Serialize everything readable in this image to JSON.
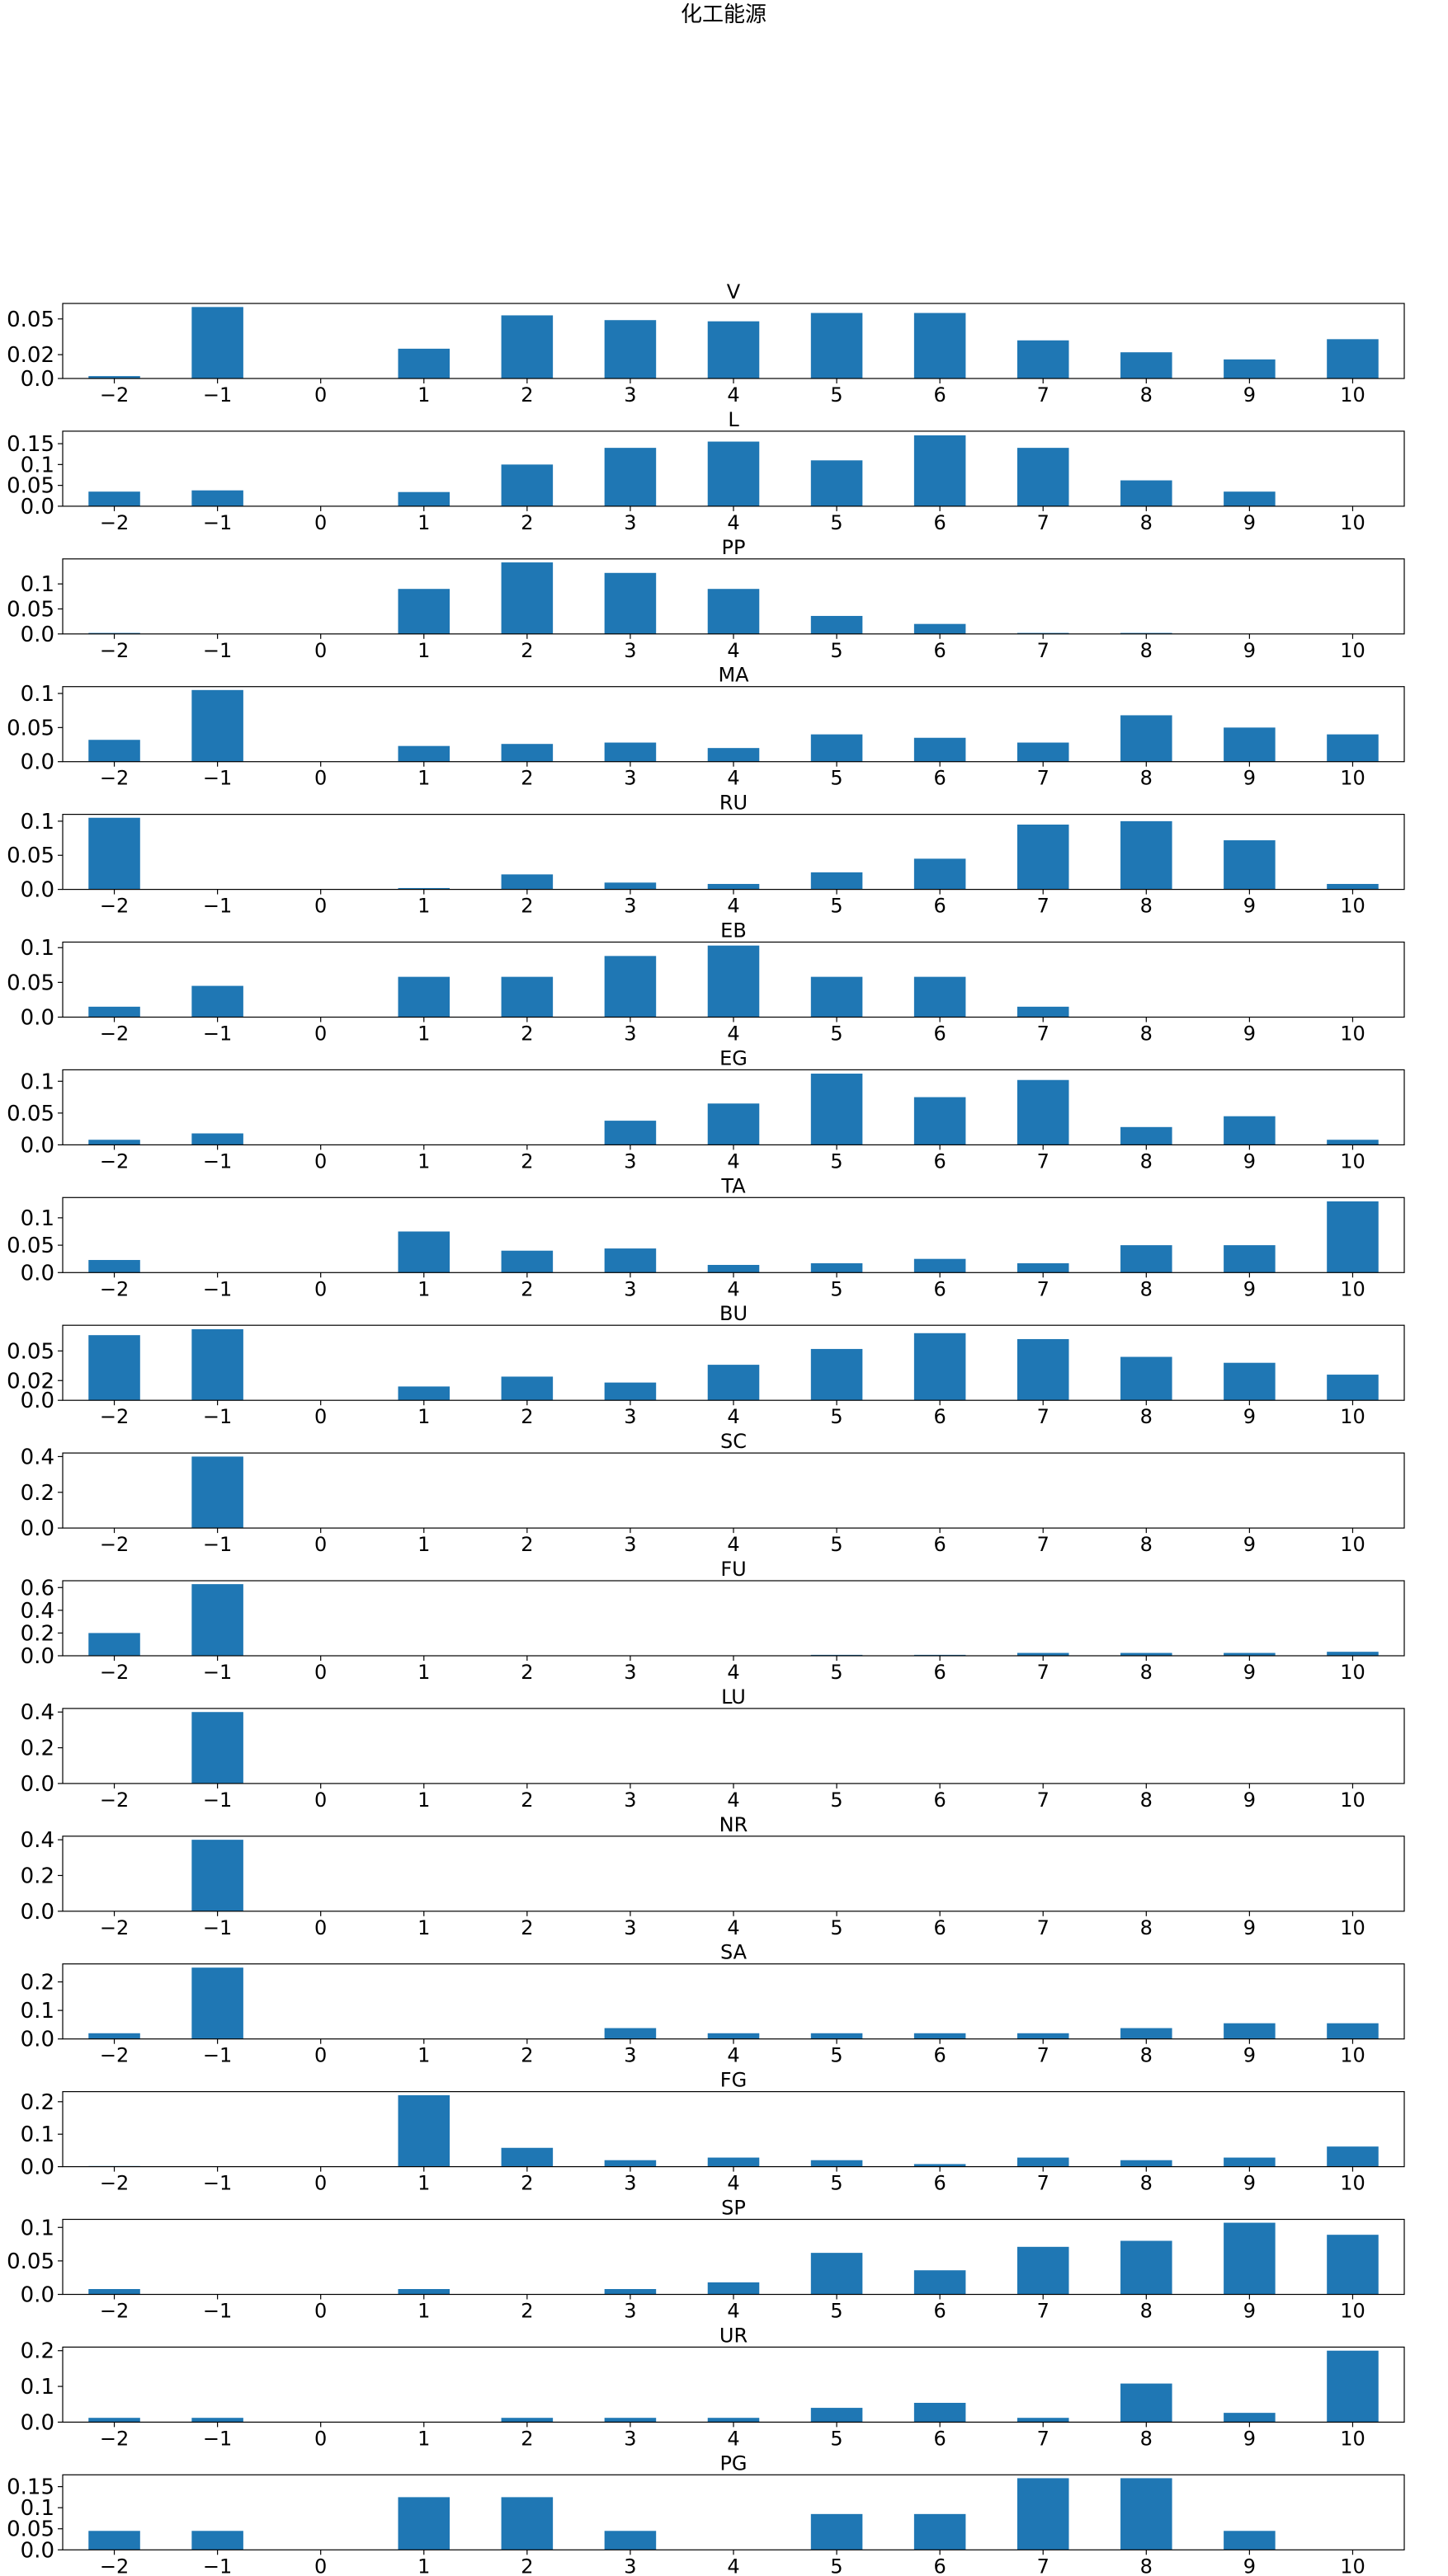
{
  "figure": {
    "suptitle": "化工能源"
  },
  "chart_data": [
    {
      "type": "bar",
      "title": "V",
      "categories": [
        -2,
        -1,
        0,
        1,
        2,
        3,
        4,
        5,
        6,
        7,
        8,
        9,
        10
      ],
      "values": [
        0.002,
        0.06,
        0,
        0.025,
        0.053,
        0.049,
        0.048,
        0.055,
        0.055,
        0.032,
        0.022,
        0.016,
        0.033
      ],
      "ylim": [
        0,
        0.063
      ],
      "yticks": [
        0.0,
        0.02,
        0.05
      ],
      "ytick_labels": [
        "0.0",
        "0.02",
        "0.05"
      ]
    },
    {
      "type": "bar",
      "title": "L",
      "categories": [
        -2,
        -1,
        0,
        1,
        2,
        3,
        4,
        5,
        6,
        7,
        8,
        9,
        10
      ],
      "values": [
        0.035,
        0.038,
        0,
        0.034,
        0.1,
        0.14,
        0.155,
        0.11,
        0.17,
        0.14,
        0.062,
        0.035,
        0
      ],
      "ylim": [
        0,
        0.18
      ],
      "yticks": [
        0.0,
        0.05,
        0.1,
        0.15
      ],
      "ytick_labels": [
        "0.0",
        "0.05",
        "0.1",
        "0.15"
      ]
    },
    {
      "type": "bar",
      "title": "PP",
      "categories": [
        -2,
        -1,
        0,
        1,
        2,
        3,
        4,
        5,
        6,
        7,
        8,
        9,
        10
      ],
      "values": [
        0.002,
        0,
        0,
        0.09,
        0.143,
        0.122,
        0.09,
        0.036,
        0.02,
        0.002,
        0.002,
        0,
        0
      ],
      "ylim": [
        0,
        0.15
      ],
      "yticks": [
        0.0,
        0.05,
        0.1
      ],
      "ytick_labels": [
        "0.0",
        "0.05",
        "0.1"
      ]
    },
    {
      "type": "bar",
      "title": "MA",
      "categories": [
        -2,
        -1,
        0,
        1,
        2,
        3,
        4,
        5,
        6,
        7,
        8,
        9,
        10
      ],
      "values": [
        0.032,
        0.105,
        0,
        0.023,
        0.026,
        0.028,
        0.02,
        0.04,
        0.035,
        0.028,
        0.068,
        0.05,
        0.04
      ],
      "ylim": [
        0,
        0.11
      ],
      "yticks": [
        0.0,
        0.05,
        0.1
      ],
      "ytick_labels": [
        "0.0",
        "0.05",
        "0.1"
      ]
    },
    {
      "type": "bar",
      "title": "RU",
      "categories": [
        -2,
        -1,
        0,
        1,
        2,
        3,
        4,
        5,
        6,
        7,
        8,
        9,
        10
      ],
      "values": [
        0.105,
        0,
        0,
        0.002,
        0.022,
        0.01,
        0.008,
        0.025,
        0.045,
        0.095,
        0.1,
        0.072,
        0.008
      ],
      "ylim": [
        0,
        0.11
      ],
      "yticks": [
        0.0,
        0.05,
        0.1
      ],
      "ytick_labels": [
        "0.0",
        "0.05",
        "0.1"
      ]
    },
    {
      "type": "bar",
      "title": "EB",
      "categories": [
        -2,
        -1,
        0,
        1,
        2,
        3,
        4,
        5,
        6,
        7,
        8,
        9,
        10
      ],
      "values": [
        0.015,
        0.045,
        0,
        0.058,
        0.058,
        0.088,
        0.103,
        0.058,
        0.058,
        0.015,
        0,
        0,
        0
      ],
      "ylim": [
        0,
        0.108
      ],
      "yticks": [
        0.0,
        0.05,
        0.1
      ],
      "ytick_labels": [
        "0.0",
        "0.05",
        "0.1"
      ]
    },
    {
      "type": "bar",
      "title": "EG",
      "categories": [
        -2,
        -1,
        0,
        1,
        2,
        3,
        4,
        5,
        6,
        7,
        8,
        9,
        10
      ],
      "values": [
        0.008,
        0.018,
        0,
        0,
        0,
        0.038,
        0.065,
        0.112,
        0.075,
        0.102,
        0.028,
        0.045,
        0.008
      ],
      "ylim": [
        0,
        0.118
      ],
      "yticks": [
        0.0,
        0.05,
        0.1
      ],
      "ytick_labels": [
        "0.0",
        "0.05",
        "0.1"
      ]
    },
    {
      "type": "bar",
      "title": "TA",
      "categories": [
        -2,
        -1,
        0,
        1,
        2,
        3,
        4,
        5,
        6,
        7,
        8,
        9,
        10
      ],
      "values": [
        0.023,
        0,
        0,
        0.075,
        0.04,
        0.044,
        0.014,
        0.017,
        0.025,
        0.017,
        0.05,
        0.05,
        0.13
      ],
      "ylim": [
        0,
        0.137
      ],
      "yticks": [
        0.0,
        0.05,
        0.1
      ],
      "ytick_labels": [
        "0.0",
        "0.05",
        "0.1"
      ]
    },
    {
      "type": "bar",
      "title": "BU",
      "categories": [
        -2,
        -1,
        0,
        1,
        2,
        3,
        4,
        5,
        6,
        7,
        8,
        9,
        10
      ],
      "values": [
        0.066,
        0.072,
        0,
        0.014,
        0.024,
        0.018,
        0.036,
        0.052,
        0.068,
        0.062,
        0.044,
        0.038,
        0.026
      ],
      "ylim": [
        0,
        0.076
      ],
      "yticks": [
        0.0,
        0.02,
        0.05
      ],
      "ytick_labels": [
        "0.0",
        "0.02",
        "0.05"
      ]
    },
    {
      "type": "bar",
      "title": "SC",
      "categories": [
        -2,
        -1,
        0,
        1,
        2,
        3,
        4,
        5,
        6,
        7,
        8,
        9,
        10
      ],
      "values": [
        0,
        0.4,
        0,
        0,
        0,
        0,
        0,
        0,
        0,
        0,
        0,
        0,
        0
      ],
      "ylim": [
        0,
        0.42
      ],
      "yticks": [
        0.0,
        0.2,
        0.4
      ],
      "ytick_labels": [
        "0.0",
        "0.2",
        "0.4"
      ]
    },
    {
      "type": "bar",
      "title": "FU",
      "categories": [
        -2,
        -1,
        0,
        1,
        2,
        3,
        4,
        5,
        6,
        7,
        8,
        9,
        10
      ],
      "values": [
        0.2,
        0.63,
        0,
        0,
        0,
        0,
        0,
        0.008,
        0.008,
        0.025,
        0.025,
        0.025,
        0.035
      ],
      "ylim": [
        0,
        0.66
      ],
      "yticks": [
        0.0,
        0.2,
        0.4,
        0.6
      ],
      "ytick_labels": [
        "0.0",
        "0.2",
        "0.4",
        "0.6"
      ]
    },
    {
      "type": "bar",
      "title": "LU",
      "categories": [
        -2,
        -1,
        0,
        1,
        2,
        3,
        4,
        5,
        6,
        7,
        8,
        9,
        10
      ],
      "values": [
        0,
        0.4,
        0,
        0,
        0,
        0,
        0,
        0,
        0,
        0,
        0,
        0,
        0
      ],
      "ylim": [
        0,
        0.42
      ],
      "yticks": [
        0.0,
        0.2,
        0.4
      ],
      "ytick_labels": [
        "0.0",
        "0.2",
        "0.4"
      ]
    },
    {
      "type": "bar",
      "title": "NR",
      "categories": [
        -2,
        -1,
        0,
        1,
        2,
        3,
        4,
        5,
        6,
        7,
        8,
        9,
        10
      ],
      "values": [
        0,
        0.4,
        0,
        0,
        0,
        0,
        0,
        0,
        0,
        0,
        0,
        0,
        0
      ],
      "ylim": [
        0,
        0.42
      ],
      "yticks": [
        0.0,
        0.2,
        0.4
      ],
      "ytick_labels": [
        "0.0",
        "0.2",
        "0.4"
      ]
    },
    {
      "type": "bar",
      "title": "SA",
      "categories": [
        -2,
        -1,
        0,
        1,
        2,
        3,
        4,
        5,
        6,
        7,
        8,
        9,
        10
      ],
      "values": [
        0.02,
        0.25,
        0,
        0,
        0,
        0.038,
        0.02,
        0.02,
        0.02,
        0.02,
        0.038,
        0.055,
        0.055
      ],
      "ylim": [
        0,
        0.263
      ],
      "yticks": [
        0.0,
        0.1,
        0.2
      ],
      "ytick_labels": [
        "0.0",
        "0.1",
        "0.2"
      ]
    },
    {
      "type": "bar",
      "title": "FG",
      "categories": [
        -2,
        -1,
        0,
        1,
        2,
        3,
        4,
        5,
        6,
        7,
        8,
        9,
        10
      ],
      "values": [
        0.002,
        0,
        0,
        0.22,
        0.058,
        0.02,
        0.028,
        0.02,
        0.008,
        0.028,
        0.02,
        0.028,
        0.062
      ],
      "ylim": [
        0,
        0.231
      ],
      "yticks": [
        0.0,
        0.1,
        0.2
      ],
      "ytick_labels": [
        "0.0",
        "0.1",
        "0.2"
      ]
    },
    {
      "type": "bar",
      "title": "SP",
      "categories": [
        -2,
        -1,
        0,
        1,
        2,
        3,
        4,
        5,
        6,
        7,
        8,
        9,
        10
      ],
      "values": [
        0.008,
        0,
        0,
        0.008,
        0,
        0.008,
        0.018,
        0.062,
        0.036,
        0.071,
        0.08,
        0.107,
        0.089
      ],
      "ylim": [
        0,
        0.112
      ],
      "yticks": [
        0.0,
        0.05,
        0.1
      ],
      "ytick_labels": [
        "0.0",
        "0.05",
        "0.1"
      ]
    },
    {
      "type": "bar",
      "title": "UR",
      "categories": [
        -2,
        -1,
        0,
        1,
        2,
        3,
        4,
        5,
        6,
        7,
        8,
        9,
        10
      ],
      "values": [
        0.012,
        0.012,
        0,
        0,
        0.012,
        0.012,
        0.012,
        0.04,
        0.054,
        0.012,
        0.108,
        0.026,
        0.2
      ],
      "ylim": [
        0,
        0.21
      ],
      "yticks": [
        0.0,
        0.1,
        0.2
      ],
      "ytick_labels": [
        "0.0",
        "0.1",
        "0.2"
      ]
    },
    {
      "type": "bar",
      "title": "PG",
      "categories": [
        -2,
        -1,
        0,
        1,
        2,
        3,
        4,
        5,
        6,
        7,
        8,
        9,
        10
      ],
      "values": [
        0.045,
        0.045,
        0,
        0.125,
        0.125,
        0.045,
        0,
        0.085,
        0.085,
        0.17,
        0.17,
        0.045,
        0
      ],
      "ylim": [
        0,
        0.178
      ],
      "yticks": [
        0.0,
        0.05,
        0.1,
        0.15
      ],
      "ytick_labels": [
        "0.0",
        "0.05",
        "0.1",
        "0.15"
      ]
    }
  ],
  "style": {
    "bar_color": "#1f77b4",
    "axis_color": "#000000",
    "background": "#ffffff"
  }
}
